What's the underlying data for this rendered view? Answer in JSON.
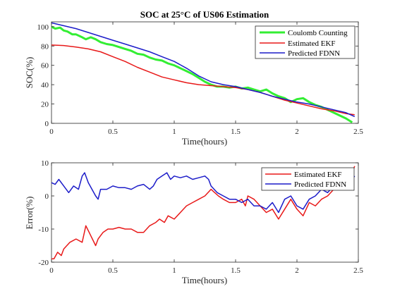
{
  "chart_data": [
    {
      "type": "line",
      "title": "SOC at 25°C of US06 Estimation",
      "xlabel": "Time(hours)",
      "ylabel": "SOC(%)",
      "xlim": [
        0,
        2.5
      ],
      "ylim": [
        0,
        105
      ],
      "xticks": [
        0,
        0.5,
        1,
        1.5,
        2,
        2.5
      ],
      "xtick_labels": [
        "0",
        "0.5",
        "1",
        "1.5",
        "2",
        "2.5"
      ],
      "yticks": [
        0,
        20,
        40,
        60,
        80,
        100
      ],
      "ytick_labels": [
        "0",
        "20",
        "40",
        "60",
        "80",
        "100"
      ],
      "grid": false,
      "legend_position": "top-right",
      "series": [
        {
          "name": "Coulomb Counting",
          "color": "#33ee33",
          "x": [
            0,
            0.03,
            0.07,
            0.1,
            0.13,
            0.17,
            0.2,
            0.25,
            0.28,
            0.32,
            0.36,
            0.4,
            0.45,
            0.5,
            0.55,
            0.6,
            0.65,
            0.7,
            0.75,
            0.8,
            0.85,
            0.9,
            0.95,
            1.0,
            1.05,
            1.1,
            1.15,
            1.2,
            1.25,
            1.3,
            1.35,
            1.4,
            1.45,
            1.5,
            1.55,
            1.6,
            1.65,
            1.7,
            1.75,
            1.8,
            1.85,
            1.9,
            1.95,
            2.0,
            2.05,
            2.1,
            2.15,
            2.2,
            2.25,
            2.3,
            2.35,
            2.4,
            2.45
          ],
          "y": [
            100,
            98,
            99,
            96,
            95,
            92,
            92,
            89,
            87,
            89,
            87,
            84,
            82,
            81,
            79,
            77,
            75,
            72,
            71,
            68,
            66,
            65,
            62,
            60,
            57,
            54,
            51,
            47,
            43,
            40,
            38,
            38,
            37,
            38,
            36,
            37,
            35,
            33,
            35,
            31,
            28,
            26,
            22,
            25,
            26,
            22,
            19,
            17,
            14,
            11,
            8,
            5,
            1
          ]
        },
        {
          "name": "Estimated EKF",
          "color": "#e81919",
          "x": [
            0,
            0.1,
            0.2,
            0.3,
            0.4,
            0.5,
            0.6,
            0.7,
            0.8,
            0.9,
            1.0,
            1.1,
            1.2,
            1.3,
            1.4,
            1.5,
            1.6,
            1.7,
            1.8,
            1.9,
            2.0,
            2.1,
            2.2,
            2.3,
            2.4,
            2.47
          ],
          "y": [
            81,
            80.5,
            79,
            77,
            74,
            69,
            64,
            58,
            53,
            48,
            45,
            42,
            40,
            39,
            38,
            37,
            35,
            32,
            28,
            24,
            21,
            18,
            15,
            13,
            10,
            9
          ]
        },
        {
          "name": "Predicted FDNN",
          "color": "#1c1cc9",
          "x": [
            0,
            0.1,
            0.2,
            0.3,
            0.4,
            0.5,
            0.6,
            0.7,
            0.8,
            0.9,
            1.0,
            1.1,
            1.2,
            1.3,
            1.4,
            1.5,
            1.6,
            1.7,
            1.8,
            1.9,
            2.0,
            2.1,
            2.2,
            2.3,
            2.4,
            2.47
          ],
          "y": [
            104,
            101,
            98,
            94,
            90,
            86,
            82,
            78,
            74,
            69,
            64,
            57,
            49,
            43,
            40,
            38,
            35,
            32,
            28,
            25,
            22,
            20,
            17,
            14,
            11,
            7
          ]
        }
      ]
    },
    {
      "type": "line",
      "title": "",
      "xlabel": "Time(hours)",
      "ylabel": "Error(%)",
      "xlim": [
        0,
        2.5
      ],
      "ylim": [
        -20,
        10
      ],
      "xticks": [
        0,
        0.5,
        1,
        1.5,
        2,
        2.5
      ],
      "xtick_labels": [
        "0",
        "0.5",
        "1",
        "1.5",
        "2",
        "2.5"
      ],
      "yticks": [
        -20,
        -10,
        0,
        10
      ],
      "ytick_labels": [
        "-20",
        "-10",
        "0",
        "10"
      ],
      "grid": false,
      "legend_position": "top-right",
      "series": [
        {
          "name": "Estimated EKF",
          "color": "#e81919",
          "x": [
            0,
            0.02,
            0.05,
            0.08,
            0.1,
            0.15,
            0.2,
            0.25,
            0.28,
            0.32,
            0.36,
            0.38,
            0.42,
            0.46,
            0.5,
            0.55,
            0.6,
            0.65,
            0.7,
            0.75,
            0.8,
            0.85,
            0.88,
            0.92,
            0.95,
            1.0,
            1.05,
            1.1,
            1.15,
            1.2,
            1.25,
            1.3,
            1.33,
            1.36,
            1.4,
            1.45,
            1.5,
            1.55,
            1.58,
            1.6,
            1.65,
            1.7,
            1.75,
            1.8,
            1.85,
            1.9,
            1.95,
            2.0,
            2.05,
            2.1,
            2.15,
            2.2,
            2.25,
            2.3,
            2.35,
            2.4,
            2.45,
            2.47
          ],
          "y": [
            -19,
            -19,
            -17,
            -18,
            -16,
            -14,
            -13,
            -14,
            -9,
            -12,
            -15,
            -13,
            -11,
            -10,
            -10,
            -9.5,
            -10,
            -10,
            -11,
            -11,
            -9,
            -8,
            -7,
            -8,
            -6,
            -7,
            -5,
            -3,
            -2,
            -1,
            0,
            2,
            1,
            0,
            -1,
            -2,
            -2,
            -1,
            -3,
            0,
            -1,
            -3,
            -5,
            -4,
            -7,
            -4,
            -1,
            -4,
            -6,
            -2,
            -3,
            -1,
            0,
            2,
            4,
            5,
            7,
            9
          ]
        },
        {
          "name": "Predicted FDNN",
          "color": "#1c1cc9",
          "x": [
            0,
            0.03,
            0.06,
            0.1,
            0.14,
            0.18,
            0.22,
            0.25,
            0.27,
            0.3,
            0.33,
            0.36,
            0.38,
            0.4,
            0.45,
            0.5,
            0.55,
            0.6,
            0.65,
            0.7,
            0.75,
            0.8,
            0.83,
            0.86,
            0.9,
            0.94,
            0.97,
            1.0,
            1.05,
            1.1,
            1.15,
            1.2,
            1.25,
            1.28,
            1.3,
            1.35,
            1.4,
            1.45,
            1.5,
            1.55,
            1.6,
            1.65,
            1.7,
            1.75,
            1.8,
            1.85,
            1.9,
            1.95,
            2.0,
            2.05,
            2.1,
            2.15,
            2.2,
            2.25,
            2.3,
            2.35,
            2.4,
            2.45,
            2.47
          ],
          "y": [
            4,
            3.5,
            5,
            3,
            1,
            3,
            2,
            6,
            7,
            4,
            2,
            0,
            -1,
            2,
            2,
            3,
            2.5,
            2.5,
            2,
            3,
            3.5,
            2,
            3,
            5,
            6,
            7,
            5,
            6,
            5.5,
            6,
            5,
            5.5,
            6,
            5,
            3,
            1,
            0,
            -1,
            -1,
            -2,
            -1,
            -3,
            -3,
            -4,
            -2,
            -5,
            -1,
            0,
            -3,
            -4,
            -1,
            0,
            2,
            1,
            3,
            4,
            4,
            5,
            6
          ]
        }
      ]
    }
  ]
}
